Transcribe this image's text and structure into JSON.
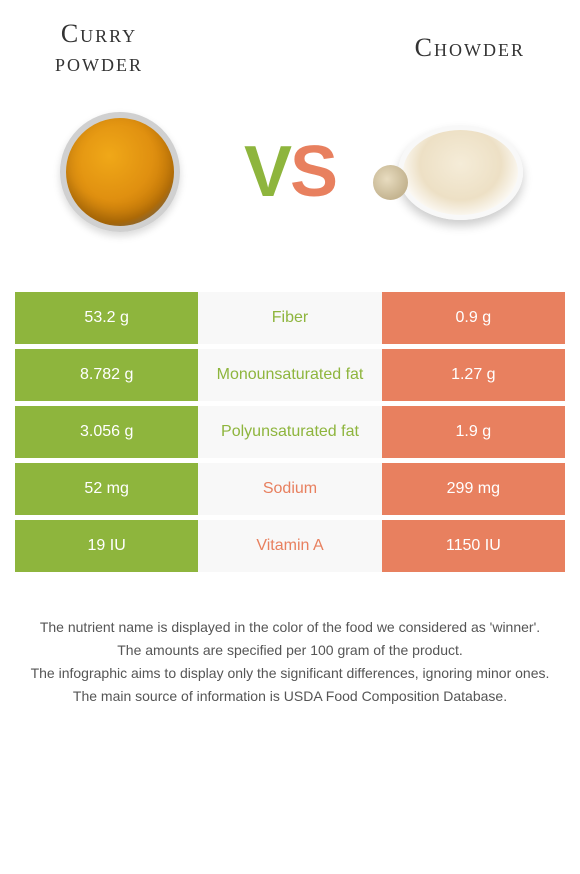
{
  "header": {
    "left_title_line1": "Curry",
    "left_title_line2": "powder",
    "right_title": "Chowder"
  },
  "vs": {
    "v": "V",
    "s": "S"
  },
  "colors": {
    "left": "#8eb53d",
    "right": "#e8805f",
    "mid_bg": "#f8f8f8",
    "text": "#555555"
  },
  "rows": [
    {
      "left": "53.2 g",
      "label": "Fiber",
      "right": "0.9 g",
      "winner": "left"
    },
    {
      "left": "8.782 g",
      "label": "Monounsaturated fat",
      "right": "1.27 g",
      "winner": "left"
    },
    {
      "left": "3.056 g",
      "label": "Polyunsaturated fat",
      "right": "1.9 g",
      "winner": "left"
    },
    {
      "left": "52 mg",
      "label": "Sodium",
      "right": "299 mg",
      "winner": "right"
    },
    {
      "left": "19 IU",
      "label": "Vitamin A",
      "right": "1150 IU",
      "winner": "right"
    }
  ],
  "footer": {
    "l1": "The nutrient name is displayed in the color of the food we considered as 'winner'.",
    "l2": "The amounts are specified per 100 gram of the product.",
    "l3": "The infographic aims to display only the significant differences, ignoring minor ones.",
    "l4": "The main source of information is USDA Food Composition Database."
  }
}
